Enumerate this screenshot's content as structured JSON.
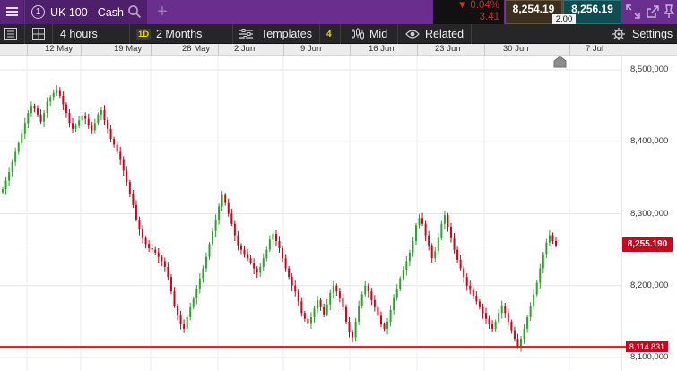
{
  "header": {
    "tab_number": "1",
    "instrument_title": "UK 100 - Cash",
    "add_tab_symbol": "+",
    "change_percent": "▼ 0.04%",
    "change_points": "3.41",
    "sell_price": "8,254.19",
    "buy_price": "8,256.19",
    "spread": "2.00",
    "icons": [
      "menu-icon",
      "search-icon",
      "expand-icon",
      "popout-icon",
      "pin-icon"
    ]
  },
  "toolbar": {
    "interval": "4 hours",
    "range_badge": "1D",
    "range": "2 Months",
    "templates": "Templates",
    "indicator_count": "4",
    "price_type": "Mid",
    "related": "Related",
    "settings": "Settings",
    "icons": [
      "list-icon",
      "layout-grid-icon",
      "templates-icon",
      "candlestick-icon",
      "eye-icon",
      "gear-icon"
    ]
  },
  "chart_data": {
    "type": "candlestick",
    "x_axis_labels": [
      "12 May",
      "19 May",
      "28 May",
      "2 Jun",
      "9 Jun",
      "16 Jun",
      "23 Jun",
      "30 Jun",
      "7 Jul"
    ],
    "y_axis_labels": [
      "8,500,000",
      "8,400,000",
      "8,300,000",
      "8,200,000",
      "8,100,000"
    ],
    "ylim": [
      8095,
      8520
    ],
    "current_price": "8,255.190",
    "current_price_value": 8255.19,
    "alert_level": "8,114.831",
    "alert_level_value": 8114.831,
    "colors": {
      "up": "#2aa52a",
      "down": "#d0021b",
      "alert_line": "#e0151f",
      "current_line": "#222222"
    },
    "closes": [
      8334,
      8346,
      8358,
      8372,
      8386,
      8398,
      8412,
      8426,
      8440,
      8450,
      8446,
      8438,
      8428,
      8440,
      8456,
      8462,
      8468,
      8472,
      8464,
      8452,
      8440,
      8426,
      8418,
      8422,
      8430,
      8436,
      8432,
      8424,
      8416,
      8426,
      8438,
      8444,
      8430,
      8418,
      8404,
      8396,
      8386,
      8376,
      8360,
      8344,
      8328,
      8312,
      8292,
      8278,
      8266,
      8258,
      8252,
      8250,
      8246,
      8240,
      8234,
      8226,
      8212,
      8192,
      8172,
      8160,
      8146,
      8140,
      8156,
      8170,
      8182,
      8196,
      8210,
      8224,
      8240,
      8258,
      8276,
      8292,
      8310,
      8326,
      8316,
      8300,
      8286,
      8270,
      8256,
      8250,
      8244,
      8238,
      8232,
      8224,
      8218,
      8226,
      8238,
      8250,
      8264,
      8272,
      8262,
      8252,
      8238,
      8224,
      8212,
      8200,
      8192,
      8178,
      8162,
      8154,
      8148,
      8156,
      8168,
      8180,
      8170,
      8160,
      8174,
      8190,
      8200,
      8192,
      8182,
      8170,
      8150,
      8136,
      8128,
      8150,
      8172,
      8188,
      8200,
      8192,
      8180,
      8170,
      8158,
      8146,
      8140,
      8150,
      8166,
      8184,
      8196,
      8210,
      8222,
      8234,
      8246,
      8262,
      8284,
      8294,
      8286,
      8270,
      8256,
      8238,
      8248,
      8266,
      8286,
      8298,
      8282,
      8266,
      8250,
      8236,
      8224,
      8212,
      8200,
      8194,
      8186,
      8178,
      8170,
      8162,
      8154,
      8146,
      8140,
      8150,
      8162,
      8172,
      8162,
      8150,
      8138,
      8126,
      8116,
      8126,
      8140,
      8156,
      8172,
      8188,
      8204,
      8224,
      8244,
      8260,
      8270,
      8262,
      8256
    ]
  }
}
